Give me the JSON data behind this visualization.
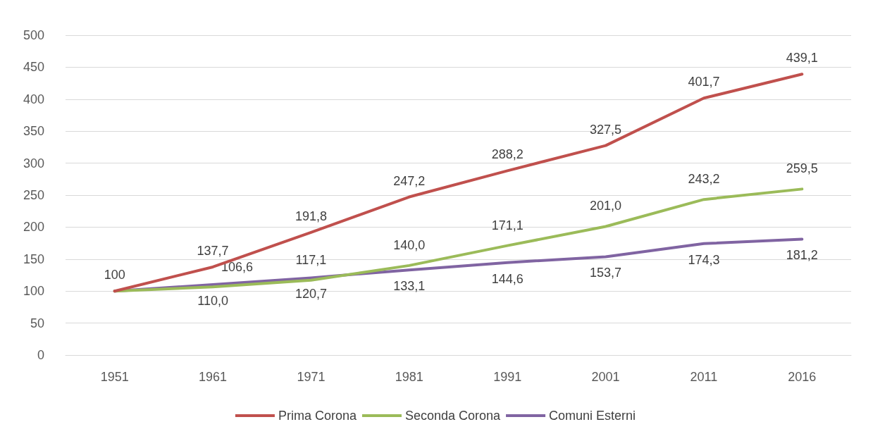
{
  "chart_data": {
    "type": "line",
    "categories": [
      "1951",
      "1961",
      "1971",
      "1981",
      "1991",
      "2001",
      "2011",
      "2016"
    ],
    "series": [
      {
        "name": "Prima Corona",
        "color": "#c0504d",
        "values": [
          100,
          137.7,
          191.8,
          247.2,
          288.2,
          327.5,
          401.7,
          439.1
        ],
        "value_labels": [
          "100",
          "137,7",
          "191,8",
          "247,2",
          "288,2",
          "327,5",
          "401,7",
          "439,1"
        ]
      },
      {
        "name": "Seconda Corona",
        "color": "#9bbb59",
        "values": [
          100,
          106.6,
          117.1,
          140.0,
          171.1,
          201.0,
          243.2,
          259.5
        ],
        "value_labels": [
          null,
          "106,6",
          "117,1",
          "140,0",
          "171,1",
          "201,0",
          "243,2",
          "259,5"
        ]
      },
      {
        "name": "Comuni Esterni",
        "color": "#8064a2",
        "values": [
          100,
          110.0,
          120.7,
          133.1,
          144.6,
          153.7,
          174.3,
          181.2
        ],
        "value_labels": [
          null,
          "110,0",
          "120,7",
          "133,1",
          "144,6",
          "153,7",
          "174,3",
          "181,2"
        ]
      }
    ],
    "ylim": [
      0,
      500
    ],
    "yticks": [
      0,
      50,
      100,
      150,
      200,
      250,
      300,
      350,
      400,
      450,
      500
    ],
    "grid": "y",
    "legend": "bottom",
    "marker": "none",
    "line_style": "solid"
  }
}
